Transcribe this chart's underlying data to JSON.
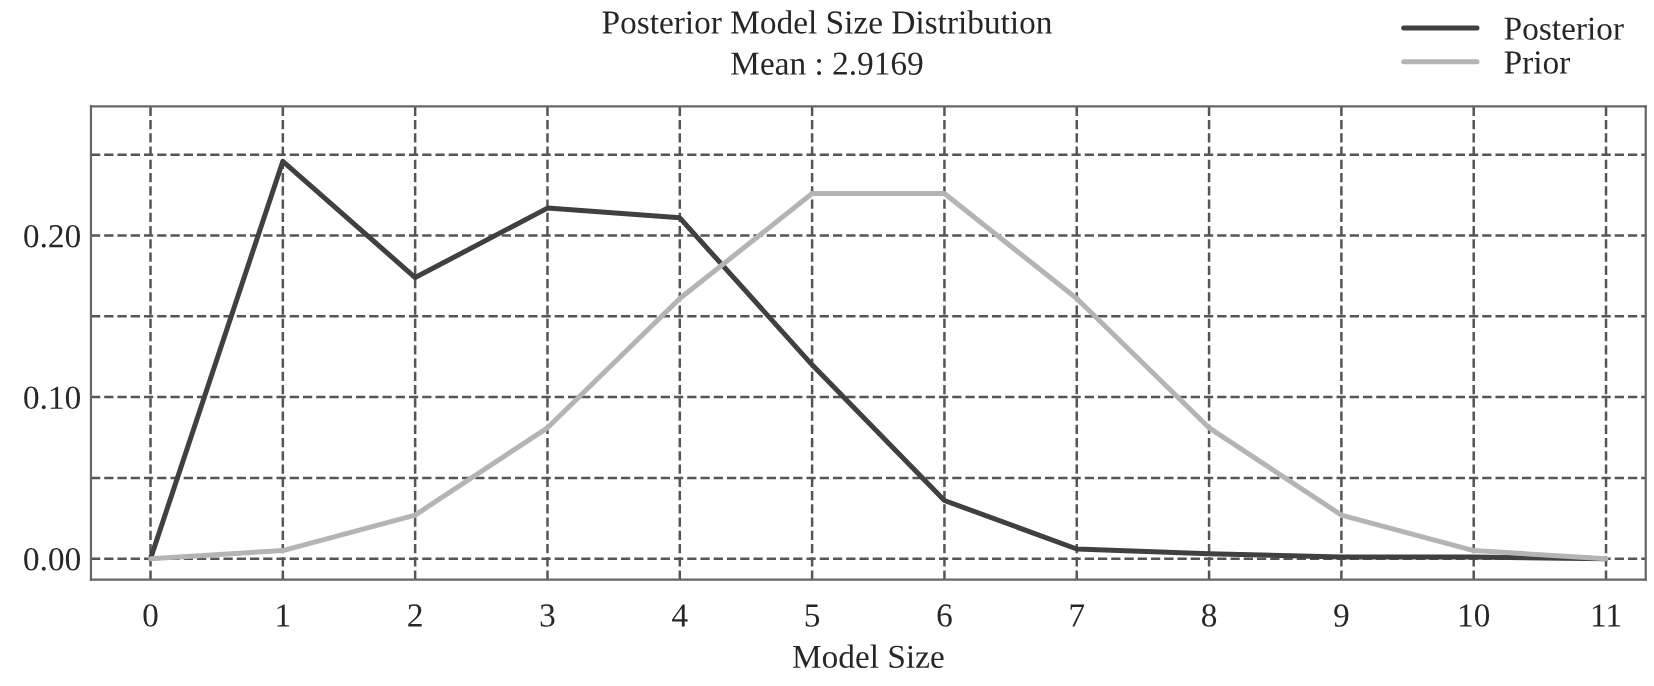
{
  "chart_data": {
    "type": "line",
    "title": "Posterior Model Size Distribution",
    "subtitle": "Mean : 2.9169",
    "xlabel": "Model Size",
    "x": [
      0,
      1,
      2,
      3,
      4,
      5,
      6,
      7,
      8,
      9,
      10,
      11
    ],
    "series": [
      {
        "name": "Posterior",
        "color": "#404040",
        "values": [
          0,
          0.246,
          0.174,
          0.217,
          0.211,
          0.12,
          0.036,
          0.006,
          0.003,
          0.001,
          0.001,
          0
        ]
      },
      {
        "name": "Prior",
        "color": "#b4b4b4",
        "values": [
          0,
          0.005,
          0.027,
          0.081,
          0.161,
          0.226,
          0.226,
          0.161,
          0.081,
          0.027,
          0.005,
          0
        ]
      }
    ],
    "xlim": [
      -0.45,
      11.3
    ],
    "xticks": [
      0,
      1,
      2,
      3,
      4,
      5,
      6,
      7,
      8,
      9,
      10,
      11
    ],
    "ylim": [
      -0.013,
      0.28
    ],
    "yticks": [
      {
        "value": 0,
        "label": "0.00"
      },
      {
        "value": 0.05,
        "label": null
      },
      {
        "value": 0.1,
        "label": "0.10"
      },
      {
        "value": 0.15,
        "label": null
      },
      {
        "value": 0.2,
        "label": "0.20"
      },
      {
        "value": 0.25,
        "label": null
      }
    ],
    "grid": true,
    "legend": "top right",
    "line_style": "solid",
    "marker": "none"
  }
}
